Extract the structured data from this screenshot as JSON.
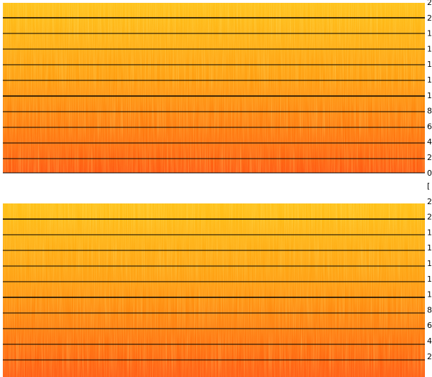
{
  "panels": [
    {
      "labels": [
        "2",
        "2",
        "1",
        "1",
        "1",
        "1",
        "1",
        "8",
        "6",
        "4",
        "2",
        "0"
      ]
    },
    {
      "labels": [
        "[",
        "2",
        "2",
        "1",
        "1",
        "1",
        "1",
        "1",
        "8",
        "6",
        "4",
        "2"
      ]
    }
  ]
}
